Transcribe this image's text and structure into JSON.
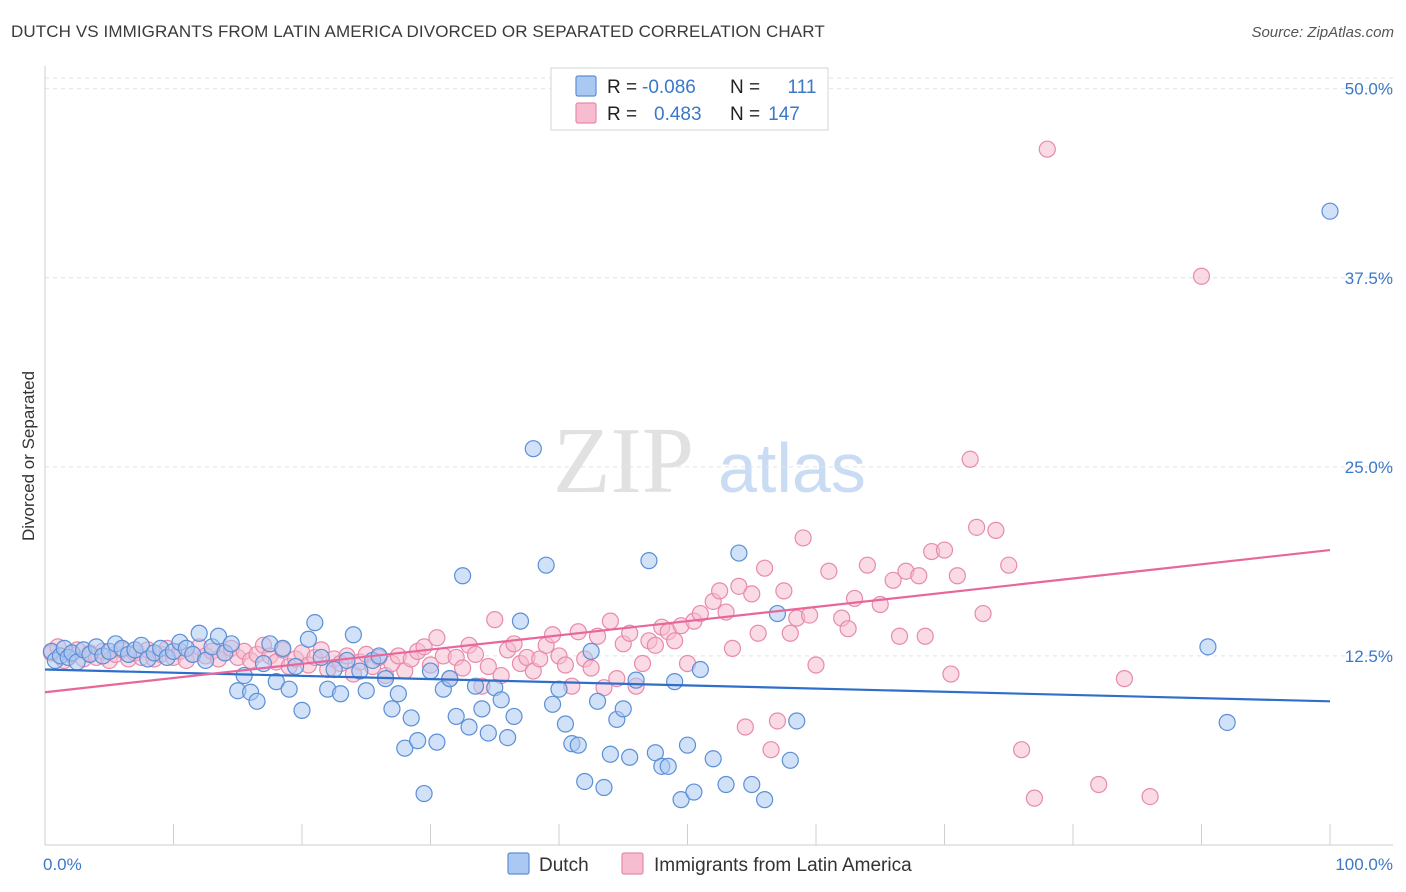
{
  "title": "DUTCH VS IMMIGRANTS FROM LATIN AMERICA DIVORCED OR SEPARATED CORRELATION CHART",
  "source": "Source: ZipAtlas.com",
  "watermark": {
    "zip": "ZIP",
    "atlas": "atlas"
  },
  "colors": {
    "dutch_fill": "#a9c8f2",
    "dutch_stroke": "#5b8fd6",
    "dutch_line": "#2f6fc9",
    "latam_fill": "#f6bccf",
    "latam_stroke": "#e88aab",
    "latam_line": "#e8679a",
    "accent_text": "#3b78c9"
  },
  "legend": {
    "r_label": "R =",
    "n_label": "N =",
    "rows": [
      {
        "series": "Dutch",
        "r": "-0.086",
        "n": "111"
      },
      {
        "series": "Immigrants from Latin America",
        "r": "0.483",
        "n": "147"
      }
    ]
  },
  "chart_data": {
    "type": "scatter",
    "title": "DUTCH VS IMMIGRANTS FROM LATIN AMERICA DIVORCED OR SEPARATED CORRELATION CHART",
    "xlabel": "",
    "ylabel": "Divorced or Separated",
    "xlim": [
      0,
      100
    ],
    "ylim": [
      0,
      51.5
    ],
    "x_tick_labels": [
      "0.0%",
      "100.0%"
    ],
    "y_ticks": [
      12.5,
      25.0,
      37.5,
      50.0
    ],
    "y_tick_labels": [
      "12.5%",
      "25.0%",
      "37.5%",
      "50.0%"
    ],
    "grid": true,
    "legend_position": "top-center",
    "series": [
      {
        "name": "Dutch",
        "color": "#a9c8f2",
        "trend": {
          "x": [
            0,
            100
          ],
          "y": [
            11.6,
            9.5
          ]
        },
        "points": [
          [
            0.5,
            12.8
          ],
          [
            0.8,
            12.2
          ],
          [
            1.2,
            12.5
          ],
          [
            1.5,
            13.0
          ],
          [
            1.8,
            12.4
          ],
          [
            2.1,
            12.7
          ],
          [
            2.5,
            12.1
          ],
          [
            3.0,
            12.9
          ],
          [
            3.5,
            12.6
          ],
          [
            4.0,
            13.1
          ],
          [
            4.5,
            12.5
          ],
          [
            5.0,
            12.8
          ],
          [
            5.5,
            13.3
          ],
          [
            6.0,
            13.0
          ],
          [
            6.5,
            12.6
          ],
          [
            7.0,
            12.9
          ],
          [
            7.5,
            13.2
          ],
          [
            8.0,
            12.3
          ],
          [
            8.5,
            12.7
          ],
          [
            9.0,
            13.0
          ],
          [
            9.5,
            12.4
          ],
          [
            10.0,
            12.8
          ],
          [
            10.5,
            13.4
          ],
          [
            11.0,
            13.0
          ],
          [
            11.5,
            12.6
          ],
          [
            12.0,
            14.0
          ],
          [
            12.5,
            12.2
          ],
          [
            13.0,
            13.1
          ],
          [
            13.5,
            13.8
          ],
          [
            14.0,
            12.7
          ],
          [
            14.5,
            13.3
          ],
          [
            15.0,
            10.2
          ],
          [
            15.5,
            11.2
          ],
          [
            16.0,
            10.1
          ],
          [
            16.5,
            9.5
          ],
          [
            17.0,
            12.0
          ],
          [
            17.5,
            13.3
          ],
          [
            18.0,
            10.8
          ],
          [
            18.5,
            13.0
          ],
          [
            19.0,
            10.3
          ],
          [
            19.5,
            11.8
          ],
          [
            20.0,
            8.9
          ],
          [
            20.5,
            13.6
          ],
          [
            21.0,
            14.7
          ],
          [
            21.5,
            12.4
          ],
          [
            22.0,
            10.3
          ],
          [
            22.5,
            11.6
          ],
          [
            23.0,
            10.0
          ],
          [
            23.5,
            12.2
          ],
          [
            24.0,
            13.9
          ],
          [
            24.5,
            11.5
          ],
          [
            25.0,
            10.2
          ],
          [
            25.5,
            12.2
          ],
          [
            26.0,
            12.5
          ],
          [
            26.5,
            11.0
          ],
          [
            27.0,
            9.0
          ],
          [
            27.5,
            10.0
          ],
          [
            28.0,
            6.4
          ],
          [
            28.5,
            8.4
          ],
          [
            29.0,
            6.9
          ],
          [
            29.5,
            3.4
          ],
          [
            30.0,
            11.5
          ],
          [
            30.5,
            6.8
          ],
          [
            31.0,
            10.3
          ],
          [
            31.5,
            11.0
          ],
          [
            32.0,
            8.5
          ],
          [
            32.5,
            17.8
          ],
          [
            33.0,
            7.8
          ],
          [
            33.5,
            10.5
          ],
          [
            34.0,
            9.0
          ],
          [
            34.5,
            7.4
          ],
          [
            35.0,
            10.4
          ],
          [
            35.5,
            9.6
          ],
          [
            36.0,
            7.1
          ],
          [
            36.5,
            8.5
          ],
          [
            37.0,
            14.8
          ],
          [
            38.0,
            26.2
          ],
          [
            39.0,
            18.5
          ],
          [
            39.5,
            9.3
          ],
          [
            40.0,
            10.3
          ],
          [
            40.5,
            8.0
          ],
          [
            41.0,
            6.7
          ],
          [
            41.5,
            6.6
          ],
          [
            42.0,
            4.2
          ],
          [
            42.5,
            12.8
          ],
          [
            43.0,
            9.5
          ],
          [
            43.5,
            3.8
          ],
          [
            44.0,
            6.0
          ],
          [
            44.5,
            8.3
          ],
          [
            45.0,
            9.0
          ],
          [
            45.5,
            5.8
          ],
          [
            46.0,
            10.9
          ],
          [
            47.0,
            18.8
          ],
          [
            47.5,
            6.1
          ],
          [
            48.0,
            5.2
          ],
          [
            48.5,
            5.2
          ],
          [
            49.0,
            10.8
          ],
          [
            49.5,
            3.0
          ],
          [
            50.0,
            6.6
          ],
          [
            50.5,
            3.5
          ],
          [
            51.0,
            11.6
          ],
          [
            52.0,
            5.7
          ],
          [
            53.0,
            4.0
          ],
          [
            54.0,
            19.3
          ],
          [
            55.0,
            4.0
          ],
          [
            56.0,
            3.0
          ],
          [
            57.0,
            15.3
          ],
          [
            58.0,
            5.6
          ],
          [
            58.5,
            8.2
          ],
          [
            90.5,
            13.1
          ],
          [
            92.0,
            8.1
          ],
          [
            100.0,
            41.9
          ]
        ]
      },
      {
        "name": "Immigrants from Latin America",
        "color": "#f6bccf",
        "trend": {
          "x": [
            0,
            100
          ],
          "y": [
            10.1,
            19.5
          ]
        },
        "points": [
          [
            0.5,
            12.7
          ],
          [
            1.0,
            13.1
          ],
          [
            1.5,
            12.2
          ],
          [
            2.0,
            12.6
          ],
          [
            2.5,
            12.9
          ],
          [
            3.0,
            12.3
          ],
          [
            3.5,
            12.7
          ],
          [
            4.0,
            12.4
          ],
          [
            4.5,
            12.8
          ],
          [
            5.0,
            12.2
          ],
          [
            5.5,
            12.6
          ],
          [
            6.0,
            12.9
          ],
          [
            6.5,
            12.3
          ],
          [
            7.0,
            12.7
          ],
          [
            7.5,
            12.4
          ],
          [
            8.0,
            12.9
          ],
          [
            8.5,
            12.3
          ],
          [
            9.0,
            12.6
          ],
          [
            9.5,
            13.0
          ],
          [
            10.0,
            12.4
          ],
          [
            10.5,
            12.8
          ],
          [
            11.0,
            12.2
          ],
          [
            11.5,
            12.6
          ],
          [
            12.0,
            13.1
          ],
          [
            12.5,
            12.5
          ],
          [
            13.0,
            12.8
          ],
          [
            13.5,
            12.3
          ],
          [
            14.0,
            12.7
          ],
          [
            14.5,
            13.0
          ],
          [
            15.0,
            12.4
          ],
          [
            15.5,
            12.8
          ],
          [
            16.0,
            12.2
          ],
          [
            16.5,
            12.6
          ],
          [
            17.0,
            13.2
          ],
          [
            17.5,
            12.5
          ],
          [
            18.0,
            12.1
          ],
          [
            18.5,
            12.9
          ],
          [
            19.0,
            11.8
          ],
          [
            19.5,
            12.3
          ],
          [
            20.0,
            12.7
          ],
          [
            20.5,
            11.9
          ],
          [
            21.0,
            12.4
          ],
          [
            21.5,
            12.9
          ],
          [
            22.0,
            11.6
          ],
          [
            22.5,
            12.3
          ],
          [
            23.0,
            12.0
          ],
          [
            23.5,
            12.5
          ],
          [
            24.0,
            11.3
          ],
          [
            24.5,
            12.1
          ],
          [
            25.0,
            12.6
          ],
          [
            25.5,
            11.8
          ],
          [
            26.0,
            12.4
          ],
          [
            26.5,
            11.2
          ],
          [
            27.0,
            12.0
          ],
          [
            27.5,
            12.5
          ],
          [
            28.0,
            11.5
          ],
          [
            28.5,
            12.3
          ],
          [
            29.0,
            12.8
          ],
          [
            29.5,
            13.1
          ],
          [
            30.0,
            11.9
          ],
          [
            30.5,
            13.7
          ],
          [
            31.0,
            12.5
          ],
          [
            31.5,
            11.0
          ],
          [
            32.0,
            12.4
          ],
          [
            32.5,
            11.7
          ],
          [
            33.0,
            13.2
          ],
          [
            33.5,
            12.6
          ],
          [
            34.0,
            10.5
          ],
          [
            34.5,
            11.8
          ],
          [
            35.0,
            14.9
          ],
          [
            35.5,
            11.2
          ],
          [
            36.0,
            12.9
          ],
          [
            36.5,
            13.3
          ],
          [
            37.0,
            12.0
          ],
          [
            37.5,
            12.4
          ],
          [
            38.0,
            11.5
          ],
          [
            38.5,
            12.3
          ],
          [
            39.0,
            13.2
          ],
          [
            39.5,
            13.9
          ],
          [
            40.0,
            12.5
          ],
          [
            40.5,
            11.9
          ],
          [
            41.0,
            10.5
          ],
          [
            41.5,
            14.1
          ],
          [
            42.0,
            12.3
          ],
          [
            42.5,
            11.7
          ],
          [
            43.0,
            13.8
          ],
          [
            43.5,
            10.4
          ],
          [
            44.0,
            14.8
          ],
          [
            44.5,
            11.0
          ],
          [
            45.0,
            13.3
          ],
          [
            45.5,
            14.0
          ],
          [
            46.0,
            10.5
          ],
          [
            46.5,
            12.0
          ],
          [
            47.0,
            13.5
          ],
          [
            47.5,
            13.2
          ],
          [
            48.0,
            14.4
          ],
          [
            48.5,
            14.1
          ],
          [
            49.0,
            13.5
          ],
          [
            49.5,
            14.5
          ],
          [
            50.0,
            12.0
          ],
          [
            50.5,
            14.8
          ],
          [
            51.0,
            15.3
          ],
          [
            52.0,
            16.1
          ],
          [
            52.5,
            16.8
          ],
          [
            53.0,
            15.4
          ],
          [
            53.5,
            13.0
          ],
          [
            54.0,
            17.1
          ],
          [
            54.5,
            7.8
          ],
          [
            55.0,
            16.6
          ],
          [
            55.5,
            14.0
          ],
          [
            56.0,
            18.3
          ],
          [
            56.5,
            6.3
          ],
          [
            57.0,
            8.2
          ],
          [
            57.5,
            16.8
          ],
          [
            58.0,
            14.0
          ],
          [
            58.5,
            15.0
          ],
          [
            59.0,
            20.3
          ],
          [
            59.5,
            15.2
          ],
          [
            60.0,
            11.9
          ],
          [
            61.0,
            18.1
          ],
          [
            62.0,
            15.0
          ],
          [
            62.5,
            14.3
          ],
          [
            63.0,
            16.3
          ],
          [
            64.0,
            18.5
          ],
          [
            65.0,
            15.9
          ],
          [
            66.0,
            17.5
          ],
          [
            66.5,
            13.8
          ],
          [
            67.0,
            18.1
          ],
          [
            68.0,
            17.8
          ],
          [
            68.5,
            13.8
          ],
          [
            69.0,
            19.4
          ],
          [
            70.0,
            19.5
          ],
          [
            70.5,
            11.3
          ],
          [
            71.0,
            17.8
          ],
          [
            72.0,
            25.5
          ],
          [
            72.5,
            21.0
          ],
          [
            73.0,
            15.3
          ],
          [
            74.0,
            20.8
          ],
          [
            75.0,
            18.5
          ],
          [
            76.0,
            6.3
          ],
          [
            77.0,
            3.1
          ],
          [
            78.0,
            46.0
          ],
          [
            82.0,
            4.0
          ],
          [
            86.0,
            3.2
          ],
          [
            90.0,
            37.6
          ],
          [
            84.0,
            11.0
          ]
        ]
      }
    ]
  },
  "bottom_legend": [
    "Dutch",
    "Immigrants from Latin America"
  ]
}
